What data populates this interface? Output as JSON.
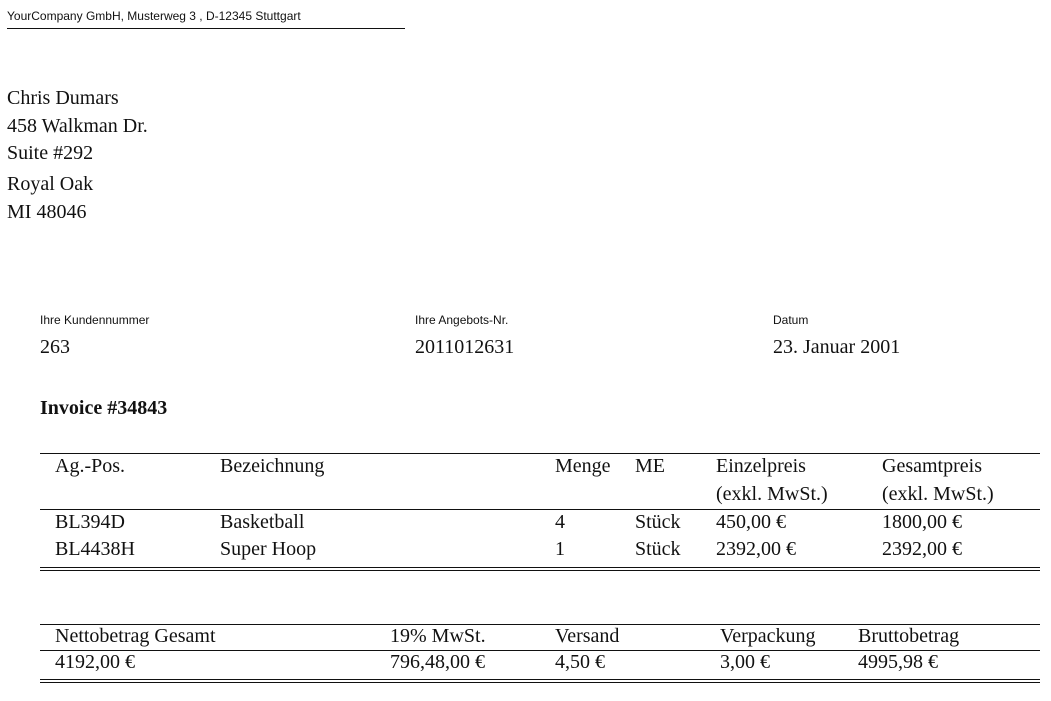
{
  "sender_line": "YourCompany GmbH, Musterweg 3 , D-12345 Stuttgart",
  "recipient": [
    "Chris Dumars",
    "458 Walkman Dr.",
    "Suite #292",
    "",
    "Royal Oak",
    "MI 48046"
  ],
  "meta": [
    {
      "label": "Ihre Kundennummer",
      "value": "263"
    },
    {
      "label": "Ihre Angebots-Nr.",
      "value": "2011012631"
    },
    {
      "label": "Datum",
      "value": "23. Januar 2001"
    }
  ],
  "invoice_title": "Invoice #34843",
  "items_table": {
    "headers": [
      "Ag.-Pos.",
      "Bezeichnung",
      "Menge",
      "ME",
      "Einzelpreis",
      "Gesamtpreis"
    ],
    "subheaders": [
      "",
      "",
      "",
      "",
      "(exkl. MwSt.)",
      "(exkl. MwSt.)"
    ],
    "rows": [
      [
        "BL394D",
        "Basketball",
        "4",
        "Stück",
        "450,00 €",
        "1800,00 €"
      ],
      [
        "BL4438H",
        "Super Hoop",
        "1",
        "Stück",
        "2392,00 €",
        "2392,00 €"
      ]
    ]
  },
  "totals_table": {
    "headers": [
      "Nettobetrag Gesamt",
      "19% MwSt.",
      "Versand",
      "Verpackung",
      "Bruttobetrag"
    ],
    "values": [
      "4192,00 €",
      "796,48,00 €",
      "4,50 €",
      "3,00 €",
      "4995,98 €"
    ]
  }
}
